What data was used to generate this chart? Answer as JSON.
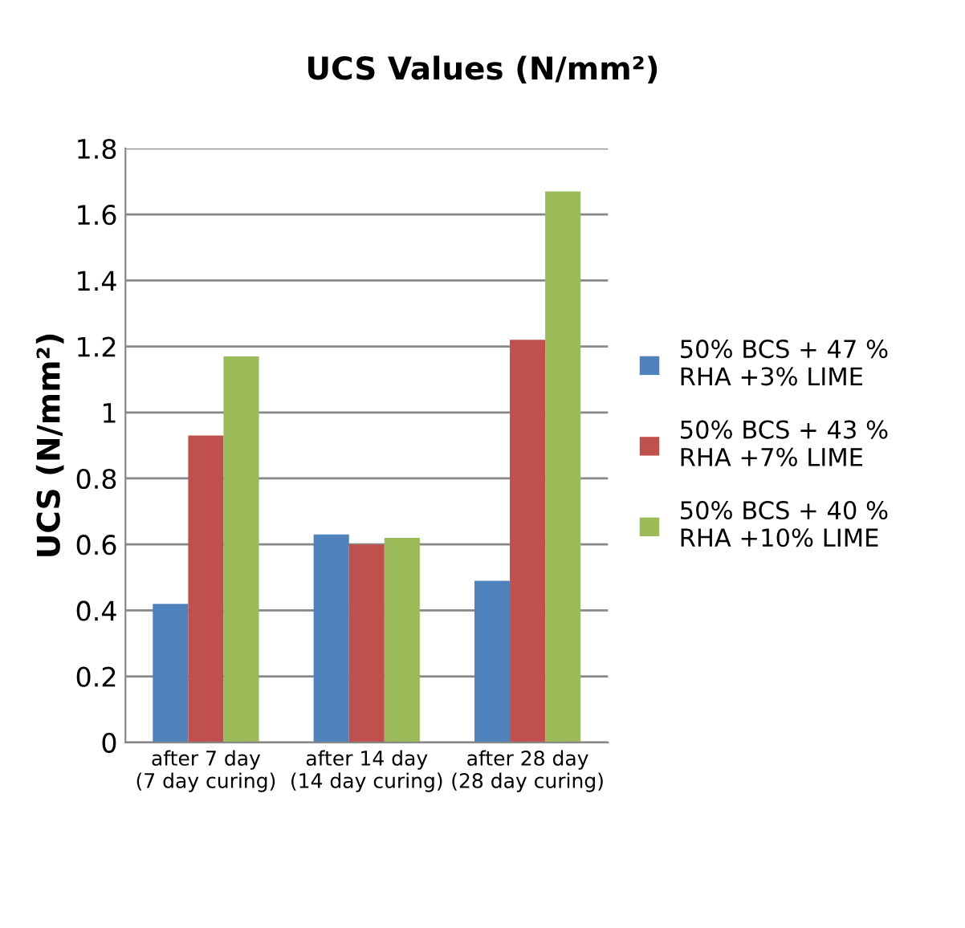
{
  "chart_data": {
    "type": "bar",
    "title": "UCS Values (N/mm²)",
    "ylabel": "UCS (N/mm²)",
    "categories": [
      "after 7 day(7 day curing)",
      "after 14 day(14 day curing)",
      "after 28 day(28 day curing)"
    ],
    "series": [
      {
        "name": "50% BCS + 47 % RHA +3% LIME",
        "color": "#4f81bd",
        "values": [
          0.42,
          0.63,
          0.49
        ]
      },
      {
        "name": "50% BCS + 43 % RHA +7% LIME",
        "color": "#c0504d",
        "values": [
          0.93,
          0.6,
          1.22
        ]
      },
      {
        "name": "50% BCS + 40 % RHA +10% LIME",
        "color": "#9bbb59",
        "values": [
          1.17,
          0.62,
          1.67
        ]
      }
    ],
    "ylim": [
      0,
      1.8
    ],
    "yticks": [
      0,
      0.2,
      0.4,
      0.6,
      0.8,
      1,
      1.2,
      1.4,
      1.6,
      1.8
    ],
    "grid": "y",
    "legend": "right"
  }
}
